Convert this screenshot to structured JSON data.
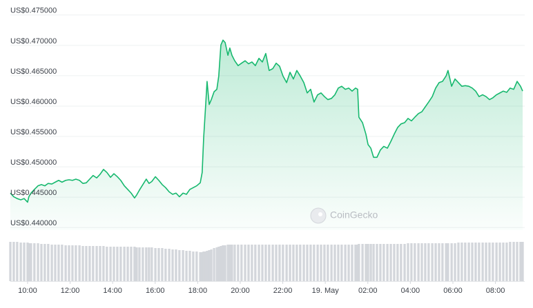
{
  "chart_data": {
    "type": "area",
    "watermark": "CoinGecko",
    "grid": true,
    "xlim": [
      9.19,
      33.28
    ],
    "xticks": [
      {
        "value": 10,
        "label": "10:00"
      },
      {
        "value": 12,
        "label": "12:00"
      },
      {
        "value": 14,
        "label": "14:00"
      },
      {
        "value": 16,
        "label": "16:00"
      },
      {
        "value": 18,
        "label": "18:00"
      },
      {
        "value": 20,
        "label": "20:00"
      },
      {
        "value": 22,
        "label": "22:00"
      },
      {
        "value": 24,
        "label": "19. May"
      },
      {
        "value": 26,
        "label": "02:00"
      },
      {
        "value": 28,
        "label": "04:00"
      },
      {
        "value": 30,
        "label": "06:00"
      },
      {
        "value": 32,
        "label": "08:00"
      }
    ],
    "ylim": [
      0.439,
      0.476
    ],
    "yticks": [
      {
        "value": 0.475,
        "label": "US$0.475000"
      },
      {
        "value": 0.47,
        "label": "US$0.470000"
      },
      {
        "value": 0.465,
        "label": "US$0.465000"
      },
      {
        "value": 0.46,
        "label": "US$0.460000"
      },
      {
        "value": 0.455,
        "label": "US$0.455000"
      },
      {
        "value": 0.45,
        "label": "US$0.450000"
      },
      {
        "value": 0.445,
        "label": "US$0.445000"
      },
      {
        "value": 0.44,
        "label": "US$0.440000"
      }
    ],
    "y2lim": [
      0,
      60
    ],
    "x": [
      9.19,
      9.35,
      9.51,
      9.68,
      9.84,
      10.0,
      10.06,
      10.16,
      10.32,
      10.49,
      10.65,
      10.81,
      10.97,
      11.14,
      11.3,
      11.46,
      11.62,
      11.79,
      11.95,
      12.11,
      12.27,
      12.44,
      12.6,
      12.76,
      12.92,
      13.08,
      13.25,
      13.41,
      13.57,
      13.73,
      13.9,
      14.06,
      14.22,
      14.38,
      14.55,
      14.71,
      14.87,
      15.03,
      15.13,
      15.26,
      15.42,
      15.58,
      15.71,
      15.84,
      16.01,
      16.17,
      16.33,
      16.49,
      16.66,
      16.82,
      16.98,
      17.14,
      17.31,
      17.47,
      17.63,
      17.79,
      17.95,
      18.12,
      18.21,
      18.28,
      18.38,
      18.44,
      18.54,
      18.64,
      18.77,
      18.9,
      18.99,
      19.09,
      19.19,
      19.29,
      19.42,
      19.51,
      19.61,
      19.74,
      19.9,
      20.06,
      20.23,
      20.39,
      20.55,
      20.71,
      20.88,
      21.04,
      21.2,
      21.36,
      21.53,
      21.69,
      21.85,
      22.01,
      22.18,
      22.34,
      22.5,
      22.66,
      22.82,
      22.99,
      23.15,
      23.31,
      23.47,
      23.64,
      23.8,
      23.96,
      24.12,
      24.29,
      24.45,
      24.61,
      24.77,
      24.94,
      25.1,
      25.26,
      25.42,
      25.52,
      25.58,
      25.75,
      25.91,
      26.01,
      26.14,
      26.27,
      26.43,
      26.59,
      26.75,
      26.92,
      27.08,
      27.24,
      27.4,
      27.56,
      27.73,
      27.89,
      28.05,
      28.21,
      28.38,
      28.54,
      28.7,
      28.86,
      29.03,
      29.19,
      29.35,
      29.51,
      29.68,
      29.77,
      29.94,
      30.1,
      30.26,
      30.42,
      30.58,
      30.75,
      30.91,
      31.07,
      31.23,
      31.4,
      31.56,
      31.72,
      31.88,
      32.05,
      32.21,
      32.37,
      32.53,
      32.69,
      32.86,
      33.02,
      33.18,
      33.28
    ],
    "series": [
      {
        "color": "#16b86e",
        "values": [
          0.4451,
          0.4445,
          0.4442,
          0.444,
          0.4442,
          0.4436,
          0.4445,
          0.4451,
          0.4457,
          0.4463,
          0.4465,
          0.4463,
          0.4467,
          0.4466,
          0.4469,
          0.4472,
          0.4469,
          0.4472,
          0.4473,
          0.4472,
          0.4474,
          0.4472,
          0.4467,
          0.4468,
          0.4474,
          0.448,
          0.4476,
          0.4482,
          0.449,
          0.4485,
          0.4477,
          0.4483,
          0.4478,
          0.4472,
          0.4463,
          0.4457,
          0.4451,
          0.4443,
          0.4448,
          0.4456,
          0.4465,
          0.4474,
          0.4467,
          0.447,
          0.4478,
          0.4472,
          0.4465,
          0.446,
          0.4453,
          0.4449,
          0.4451,
          0.4445,
          0.4451,
          0.4449,
          0.4457,
          0.446,
          0.4463,
          0.4468,
          0.4485,
          0.4542,
          0.4599,
          0.4635,
          0.4597,
          0.4605,
          0.4618,
          0.4622,
          0.4644,
          0.4695,
          0.4703,
          0.4699,
          0.4678,
          0.469,
          0.4678,
          0.4669,
          0.4661,
          0.4665,
          0.4669,
          0.4664,
          0.4667,
          0.4661,
          0.4673,
          0.4667,
          0.4681,
          0.4653,
          0.4656,
          0.4665,
          0.466,
          0.4644,
          0.4633,
          0.465,
          0.4639,
          0.4653,
          0.4644,
          0.4633,
          0.4616,
          0.4622,
          0.4601,
          0.4613,
          0.4616,
          0.461,
          0.4605,
          0.4607,
          0.4613,
          0.4624,
          0.4627,
          0.4622,
          0.4624,
          0.4619,
          0.4624,
          0.4622,
          0.4576,
          0.4567,
          0.4548,
          0.4531,
          0.4525,
          0.451,
          0.451,
          0.4522,
          0.4528,
          0.4525,
          0.4536,
          0.4548,
          0.4559,
          0.4565,
          0.4567,
          0.4574,
          0.457,
          0.4576,
          0.4582,
          0.4585,
          0.4593,
          0.4601,
          0.461,
          0.4624,
          0.4633,
          0.4635,
          0.4644,
          0.4653,
          0.4627,
          0.4639,
          0.4633,
          0.4627,
          0.4628,
          0.4627,
          0.4624,
          0.4619,
          0.461,
          0.4613,
          0.461,
          0.4605,
          0.4608,
          0.4613,
          0.4616,
          0.4619,
          0.4617,
          0.4624,
          0.4622,
          0.4635,
          0.4627,
          0.4619
        ]
      },
      {
        "type": "bar",
        "axis": "y2",
        "color": "#d3d6db",
        "values": [
          57,
          57,
          57,
          56,
          56,
          56,
          55,
          55,
          55,
          55,
          54,
          54,
          54,
          53,
          53,
          53,
          53,
          52,
          52,
          52,
          52,
          52,
          51,
          51,
          51,
          51,
          51,
          51,
          51,
          50,
          50,
          50,
          50,
          50,
          50,
          50,
          50,
          50,
          49,
          49,
          49,
          49,
          49,
          49,
          48,
          48,
          48,
          47,
          47,
          46,
          46,
          45,
          45,
          44,
          44,
          43,
          43,
          42,
          42,
          43,
          43,
          44,
          45,
          46,
          48,
          49,
          50,
          51,
          52,
          52,
          53,
          53,
          53,
          53,
          53,
          53,
          53,
          53,
          53,
          53,
          53,
          53,
          53,
          53,
          53,
          53,
          53,
          53,
          53,
          53,
          53,
          53,
          53,
          53,
          53,
          53,
          53,
          53,
          53,
          53,
          53,
          53,
          53,
          53,
          53,
          53,
          53,
          53,
          53,
          53,
          54,
          54,
          54,
          54,
          54,
          54,
          54,
          54,
          54,
          54,
          54,
          54,
          54,
          54,
          54,
          55,
          55,
          55,
          55,
          55,
          55,
          55,
          55,
          55,
          55,
          55,
          55,
          55,
          55,
          55,
          56,
          56,
          56,
          56,
          56,
          56,
          56,
          56,
          56,
          56,
          56,
          56,
          56,
          56,
          56,
          57,
          57,
          57,
          57,
          57
        ]
      }
    ]
  }
}
